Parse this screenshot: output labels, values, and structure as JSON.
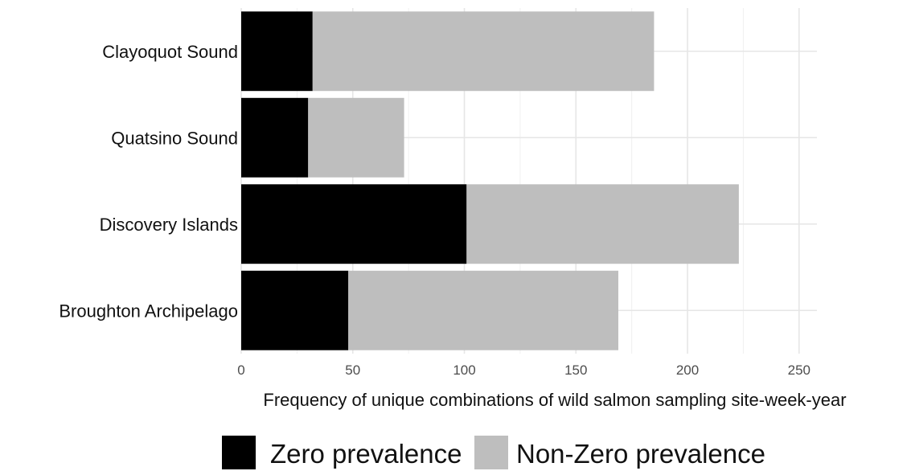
{
  "chart_data": {
    "type": "bar",
    "orientation": "horizontal",
    "stacked": true,
    "categories": [
      "Clayoquot Sound",
      "Quatsino Sound",
      "Discovery Islands",
      "Broughton Archipelago"
    ],
    "series": [
      {
        "name": "Zero prevalence",
        "values": [
          32,
          30,
          101,
          48
        ],
        "color": "#000000"
      },
      {
        "name": "Non-Zero prevalence",
        "values": [
          153,
          43,
          122,
          121
        ],
        "color": "#bebebe"
      }
    ],
    "xlabel": "Frequency of unique combinations of wild salmon sampling site-week-year",
    "ylabel": "",
    "xlim": [
      0,
      258
    ],
    "xticks": [
      0,
      50,
      100,
      150,
      200,
      250
    ],
    "xtick_labels": [
      "0",
      "50",
      "100",
      "150",
      "200",
      "250"
    ],
    "grid": true,
    "legend_position": "bottom"
  }
}
